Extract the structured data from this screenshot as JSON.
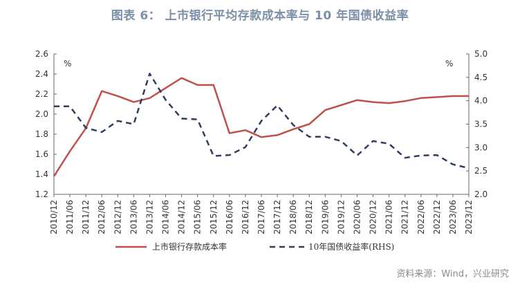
{
  "title": "图表 6： 上市银行平均存款成本率与 10 年国债收益率",
  "source": "资料来源：Wind，兴业研究",
  "chart_data": {
    "type": "line",
    "title": "图表 6： 上市银行平均存款成本率与 10 年国债收益率",
    "categories": [
      "2010/12",
      "2011/06",
      "2011/12",
      "2012/06",
      "2012/12",
      "2013/06",
      "2013/12",
      "2014/06",
      "2014/12",
      "2015/06",
      "2015/12",
      "2016/06",
      "2016/12",
      "2017/06",
      "2017/12",
      "2018/06",
      "2018/12",
      "2019/06",
      "2019/12",
      "2020/06",
      "2020/12",
      "2021/06",
      "2021/12",
      "2022/06",
      "2022/12",
      "2023/06",
      "2023/12"
    ],
    "left_axis": {
      "unit": "%",
      "ylim": [
        1.2,
        2.6
      ],
      "ticks": [
        "1.2",
        "1.4",
        "1.6",
        "1.8",
        "2.0",
        "2.2",
        "2.4",
        "2.6"
      ]
    },
    "right_axis": {
      "unit": "%",
      "ylim": [
        2.0,
        5.0
      ],
      "ticks": [
        "2.0",
        "2.5",
        "3.0",
        "3.5",
        "4.0",
        "4.5",
        "5.0"
      ]
    },
    "series": [
      {
        "name": "上市银行存款成本率",
        "axis": "left",
        "color": "#c0504d",
        "style": "solid",
        "values": [
          1.38,
          1.63,
          1.86,
          2.23,
          2.18,
          2.12,
          2.16,
          2.26,
          2.36,
          2.29,
          2.29,
          1.81,
          1.84,
          1.77,
          1.79,
          1.85,
          1.9,
          2.04,
          2.09,
          2.14,
          2.12,
          2.11,
          2.13,
          2.16,
          2.17,
          2.18,
          2.18
        ]
      },
      {
        "name": "10年国债收益率(RHS)",
        "axis": "right",
        "color": "#2e3e5c",
        "style": "dashed",
        "values": [
          3.88,
          3.88,
          3.42,
          3.33,
          3.57,
          3.5,
          4.58,
          4.02,
          3.62,
          3.6,
          2.82,
          2.84,
          3.01,
          3.57,
          3.9,
          3.48,
          3.23,
          3.23,
          3.14,
          2.83,
          3.14,
          3.08,
          2.78,
          2.83,
          2.84,
          2.64,
          2.56
        ]
      }
    ]
  }
}
